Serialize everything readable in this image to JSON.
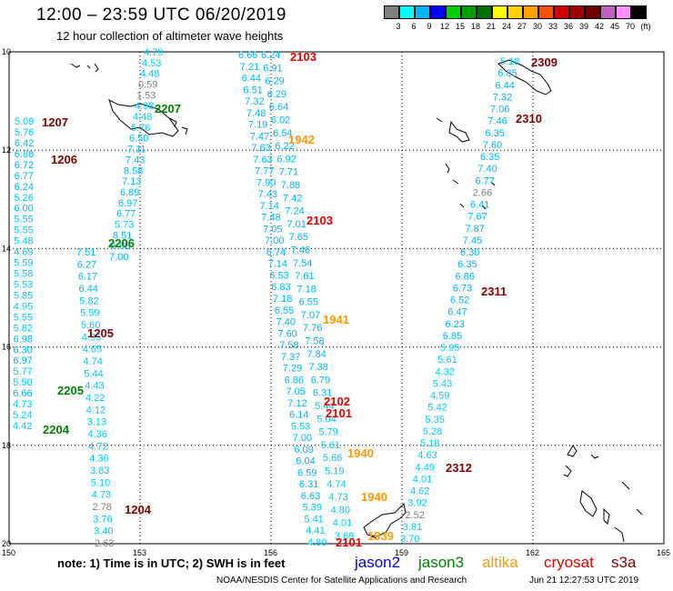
{
  "header": {
    "title": "12:00 – 23:59 UTC 06/20/2019",
    "subtitle": "12 hour collection of altimeter wave heights"
  },
  "color_scale": {
    "labels": [
      "3",
      "6",
      "9",
      "12",
      "15",
      "18",
      "21",
      "24",
      "27",
      "30",
      "33",
      "36",
      "39",
      "42",
      "45",
      "70",
      "(ft)"
    ],
    "colors": [
      "#808080",
      "#00ffff",
      "#00b4ff",
      "#0000ff",
      "#00d000",
      "#00a000",
      "#007000",
      "#ffff00",
      "#ffd200",
      "#ffa000",
      "#ff5000",
      "#d00000",
      "#a00000",
      "#700000",
      "#c060c0",
      "#ff90ff",
      "#000000"
    ]
  },
  "axes": {
    "lat_labels": [
      "10",
      "12",
      "14",
      "16",
      "18",
      "20"
    ],
    "lon_labels": [
      "150",
      "153",
      "156",
      "159",
      "162",
      "165"
    ]
  },
  "pass_labels": [
    {
      "text": "2103",
      "color": "#e00000"
    },
    {
      "text": "2309",
      "color": "#800000"
    },
    {
      "text": "2207",
      "color": "#008000"
    },
    {
      "text": "1207",
      "color": "#800000"
    },
    {
      "text": "2310",
      "color": "#800000"
    },
    {
      "text": "1942",
      "color": "#ff9900"
    },
    {
      "text": "1206",
      "color": "#800000"
    },
    {
      "text": "2103",
      "color": "#e00000"
    },
    {
      "text": "2206",
      "color": "#008000"
    },
    {
      "text": "2311",
      "color": "#800000"
    },
    {
      "text": "1941",
      "color": "#ff9900"
    },
    {
      "text": "1205",
      "color": "#800000"
    },
    {
      "text": "2205",
      "color": "#008000"
    },
    {
      "text": "2102",
      "color": "#e00000"
    },
    {
      "text": "2101",
      "color": "#e00000"
    },
    {
      "text": "2204",
      "color": "#008000"
    },
    {
      "text": "1940",
      "color": "#ff9900"
    },
    {
      "text": "2312",
      "color": "#800000"
    },
    {
      "text": "1940",
      "color": "#ff9900"
    },
    {
      "text": "1204",
      "color": "#800000"
    },
    {
      "text": "1939",
      "color": "#ff9900"
    },
    {
      "text": "2101",
      "color": "#e00000"
    }
  ],
  "tracks": [
    {
      "name": "track-jason3-west",
      "values": [
        "4.79",
        "4.53",
        "4.48",
        "0.59",
        "1.53",
        "4.98",
        "4.48",
        "5.76",
        "6.50",
        "7.11",
        "7.43",
        "8.58",
        "7.13",
        "6.89",
        "6.97",
        "6.77",
        "5.73",
        "8.51",
        "6.68",
        "7.00"
      ]
    },
    {
      "name": "track-cryosat-west",
      "values": [
        "5.09",
        "5.76",
        "6.42",
        "6.88",
        "6.72",
        "6.77",
        "6.24",
        "5.26",
        "6.00",
        "5.55",
        "5.55",
        "5.48",
        "4.69",
        "5.59",
        "5.58",
        "5.53",
        "5.85",
        "4.95",
        "5.55",
        "5.82",
        "6.98",
        "6.30",
        "6.97",
        "5.77",
        "5.50",
        "6.66",
        "4.73",
        "5.24",
        "4.42"
      ]
    },
    {
      "name": "track-jason3-south",
      "values": [
        "7.51",
        "6.27",
        "6.17",
        "6.44",
        "5.82",
        "5.59",
        "5.60",
        "4.95",
        "4.65",
        "4.74",
        "5.44",
        "4.43",
        "4.22",
        "4.12",
        "3.13",
        "4.36",
        "4.72",
        "4.36",
        "3.83",
        "5.10",
        "4.73",
        "2.78",
        "3.76",
        "3.40",
        "2.63"
      ]
    },
    {
      "name": "track-altika-central",
      "values": [
        "6.66",
        "7.21",
        "6.44",
        "6.51",
        "7.32",
        "7.48",
        "7.19",
        "7.47",
        "7.63",
        "7.63",
        "7.77",
        "7.90",
        "7.43",
        "7.14",
        "7.48",
        "7.05",
        "7.00",
        "6.74",
        "7.14",
        "6.53",
        "6.83",
        "7.18",
        "6.55",
        "7.40",
        "7.60",
        "7.58",
        "7.37",
        "7.29",
        "6.86",
        "7.05",
        "7.12",
        "6.14",
        "5.53",
        "7.00",
        "6.09",
        "6.04",
        "6.59",
        "6.31",
        "6.63",
        "5.39",
        "5.41",
        "4.41",
        "4.80"
      ]
    },
    {
      "name": "track-jason2-central",
      "values": [
        "6.24",
        "6.91",
        "6.29",
        "6.29",
        "6.64",
        "6.02",
        "6.54",
        "6.22",
        "6.92",
        "7.71",
        "7.88",
        "7.42",
        "7.24",
        "7.01",
        "7.65",
        "7.46",
        "7.54",
        "7.61",
        "7.18",
        "6.55",
        "7.07",
        "7.76",
        "7.58",
        "7.84",
        "7.38",
        "6.79",
        "6.31",
        "5.44",
        "5.04",
        "5.79",
        "5.61",
        "5.66",
        "5.19",
        "4.74",
        "4.73",
        "4.80",
        "4.01",
        "3.69"
      ]
    },
    {
      "name": "track-cryosat-east",
      "values": [
        "5.18",
        "6.85",
        "6.44",
        "7.32",
        "7.06",
        "7.46",
        "6.35",
        "7.60",
        "6.35",
        "7.40",
        "6.77",
        "2.66",
        "6.41",
        "7.67",
        "7.87",
        "7.45",
        "6.30",
        "6.35",
        "6.86",
        "6.73",
        "6.52",
        "6.47",
        "6.23",
        "6.85",
        "5.95",
        "5.61",
        "4.32",
        "5.43",
        "4.59",
        "5.42",
        "5.35",
        "5.28",
        "5.18",
        "4.63",
        "4.49",
        "4.01",
        "4.62",
        "3.92",
        "2.52",
        "3.81",
        "3.70"
      ]
    }
  ],
  "legend": {
    "note": "note:  1) Time is in UTC;  2) SWH is in feet",
    "satellites": [
      {
        "name": "jason2",
        "color": "#0000e0"
      },
      {
        "name": "jason3",
        "color": "#008000"
      },
      {
        "name": "altika",
        "color": "#ff9900"
      },
      {
        "name": "cryosat",
        "color": "#e00000"
      },
      {
        "name": "s3a",
        "color": "#800000"
      }
    ]
  },
  "footer": {
    "credit": "NOAA/NESDIS Center for Satellite Applications and Research",
    "timestamp": "Jun 21 12:27:53 UTC 2019"
  }
}
